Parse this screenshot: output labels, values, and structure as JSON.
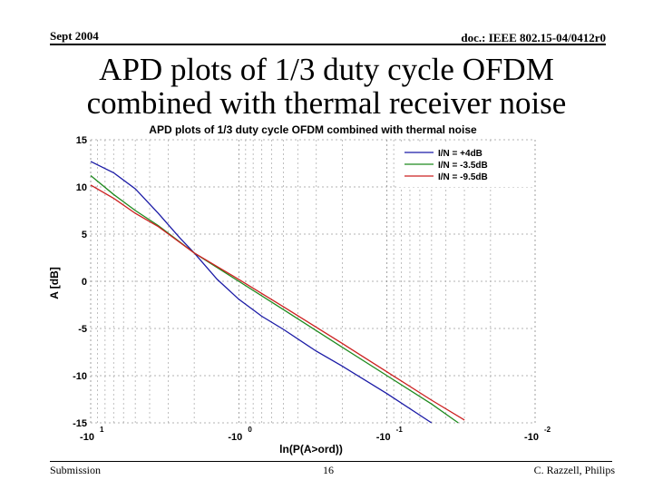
{
  "header": {
    "date": "Sept 2004",
    "doc_id": "doc.: IEEE 802.15-04/0412r0"
  },
  "slide": {
    "title_line1": "APD plots of 1/3 duty cycle OFDM",
    "title_line2": "combined with thermal receiver noise"
  },
  "footer": {
    "left": "Submission",
    "page": "16",
    "author": "C. Razzell, Philips"
  },
  "colors": {
    "blue": "#1a1aa6",
    "green": "#1e8a1e",
    "red": "#cc2020"
  },
  "chart_data": {
    "type": "line",
    "title": "APD plots of 1/3 duty cycle OFDM combined with thermal noise",
    "xlabel": "ln(P(A>ord))",
    "ylabel": "A [dB]",
    "xscale": "log (decades of -ln P)",
    "xlim": [
      10,
      0.01
    ],
    "ylim": [
      -15,
      15
    ],
    "grid": true,
    "legend_position": "top-right",
    "x_ticks": [
      {
        "value": 10,
        "base": "-10",
        "exp": "1"
      },
      {
        "value": 1,
        "base": "-10",
        "exp": "0"
      },
      {
        "value": 0.1,
        "base": "-10",
        "exp": "-1"
      },
      {
        "value": 0.01,
        "base": "-10",
        "exp": "-2"
      }
    ],
    "y_ticks": [
      15,
      10,
      5,
      0,
      -5,
      -10,
      -15
    ],
    "series": [
      {
        "name": "I/N = +4dB",
        "color": "#1a1aa6",
        "points": [
          [
            10,
            12.7
          ],
          [
            7,
            11.5
          ],
          [
            5,
            9.8
          ],
          [
            3.5,
            7.2
          ],
          [
            2.5,
            4.6
          ],
          [
            2,
            3.0
          ],
          [
            1.4,
            0.2
          ],
          [
            1,
            -1.9
          ],
          [
            0.7,
            -3.7
          ],
          [
            0.5,
            -5.1
          ],
          [
            0.3,
            -7.4
          ],
          [
            0.2,
            -9.0
          ],
          [
            0.1,
            -11.9
          ],
          [
            0.05,
            -15
          ]
        ]
      },
      {
        "name": "I/N = -3.5dB",
        "color": "#1e8a1e",
        "points": [
          [
            10,
            11.2
          ],
          [
            7,
            9.2
          ],
          [
            5,
            7.5
          ],
          [
            3.5,
            5.9
          ],
          [
            2,
            3.0
          ],
          [
            1,
            0.0
          ],
          [
            0.5,
            -3.0
          ],
          [
            0.2,
            -7.0
          ],
          [
            0.1,
            -10.0
          ],
          [
            0.05,
            -13.0
          ],
          [
            0.033,
            -15
          ]
        ]
      },
      {
        "name": "I/N = -9.5dB",
        "color": "#cc2020",
        "points": [
          [
            10,
            10.2
          ],
          [
            7,
            8.8
          ],
          [
            5,
            7.2
          ],
          [
            3.5,
            5.8
          ],
          [
            2,
            3.0
          ],
          [
            1,
            0.2
          ],
          [
            0.5,
            -2.7
          ],
          [
            0.2,
            -6.6
          ],
          [
            0.1,
            -9.6
          ],
          [
            0.05,
            -12.6
          ],
          [
            0.03,
            -14.7
          ]
        ]
      }
    ]
  }
}
